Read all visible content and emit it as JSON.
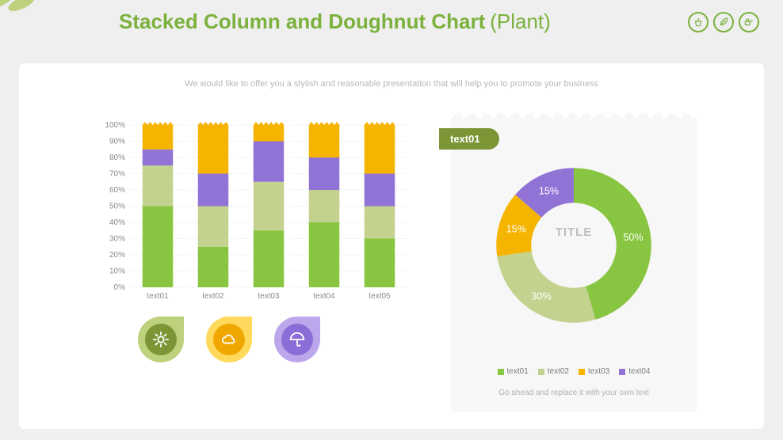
{
  "page": {
    "title_main": "Stacked Column and Doughnut Chart",
    "title_sub": "(Plant)",
    "subtitle": "We would like to offer you a stylish and reasonable presentation that will help you to promote your business",
    "bg": "#efefef",
    "card_bg": "#ffffff"
  },
  "palette": {
    "green": "#88c540",
    "olive": "#c3d28e",
    "amber": "#f5b400",
    "violet": "#9173d6",
    "olive_dark": "#7c9636"
  },
  "bar_chart": {
    "type": "stacked-bar-100",
    "categories": [
      "text01",
      "text02",
      "text03",
      "text04",
      "text05"
    ],
    "yticks": [
      "0%",
      "10%",
      "20%",
      "30%",
      "40%",
      "50%",
      "60%",
      "70%",
      "80%",
      "90%",
      "100%"
    ],
    "ylim": [
      0,
      100
    ],
    "series_order": [
      "green",
      "olive",
      "violet",
      "amber"
    ],
    "series_colors": {
      "green": "#88c540",
      "olive": "#c3d28e",
      "violet": "#9173d6",
      "amber": "#f5b400"
    },
    "stacks": [
      {
        "green": 50,
        "olive": 25,
        "violet": 10,
        "amber": 15
      },
      {
        "green": 25,
        "olive": 25,
        "violet": 20,
        "amber": 30
      },
      {
        "green": 35,
        "olive": 30,
        "violet": 25,
        "amber": 10
      },
      {
        "green": 40,
        "olive": 20,
        "violet": 20,
        "amber": 20
      },
      {
        "green": 30,
        "olive": 20,
        "violet": 20,
        "amber": 30
      }
    ],
    "top_stub_color": "#f5b400",
    "top_stub_h": 0
  },
  "drops": [
    {
      "outer": "#bed17d",
      "inner": "#7c9636",
      "icon": "sun"
    },
    {
      "outer": "#ffd95c",
      "inner": "#f0a800",
      "icon": "cloud"
    },
    {
      "outer": "#bca7ec",
      "inner": "#8c6cd6",
      "icon": "umbrella"
    }
  ],
  "donut": {
    "type": "doughnut",
    "tab_label": "text01",
    "tab_color": "#7c9636",
    "center_text": "TITLE",
    "footer": "Go ahead and replace it with your own text",
    "panel_bg": "#f7f7f7",
    "slices": [
      {
        "label": "text01",
        "value": 50,
        "color": "#88c540",
        "text": "50%"
      },
      {
        "label": "text02",
        "value": 30,
        "color": "#c3d28e",
        "text": "30%"
      },
      {
        "label": "text03",
        "value": 15,
        "color": "#f5b400",
        "text": "15%"
      },
      {
        "label": "text04",
        "value": 15,
        "color": "#9173d6",
        "text": "15%"
      }
    ],
    "label_color": "#ffffff",
    "inner_ratio": 0.55
  }
}
